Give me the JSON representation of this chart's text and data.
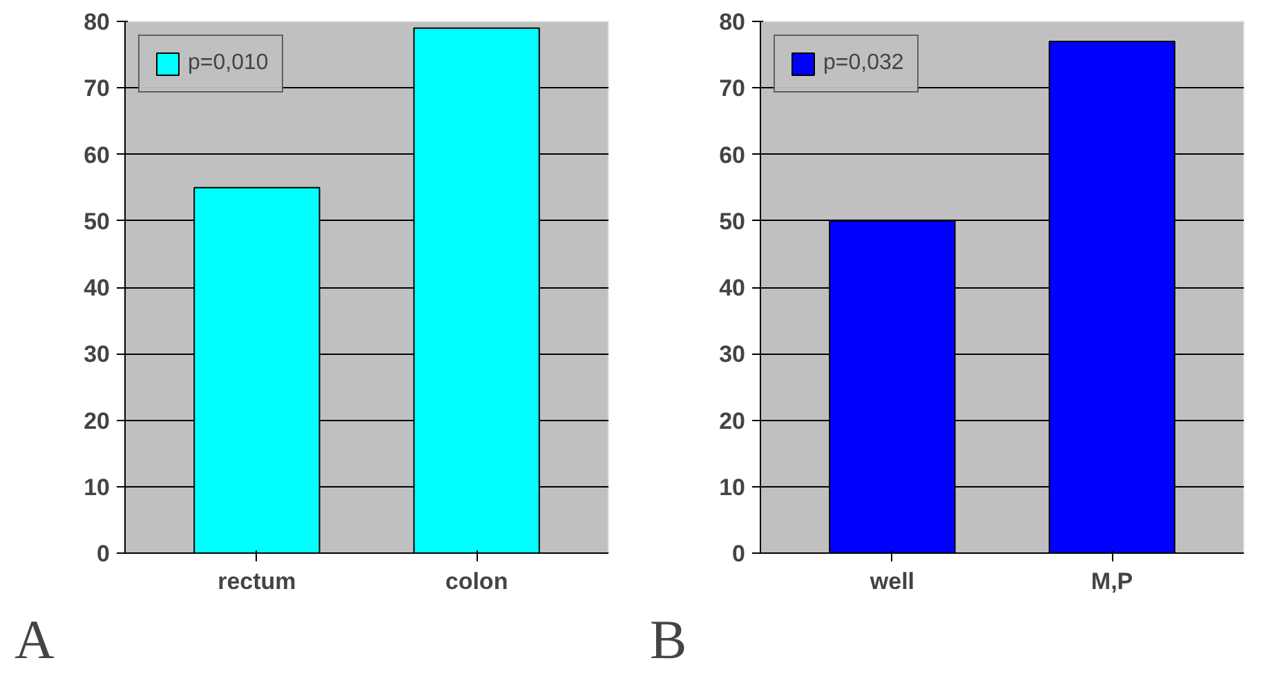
{
  "chart_data": [
    {
      "type": "bar",
      "categories": [
        "rectum",
        "colon"
      ],
      "series": [
        {
          "name": "p=0,010",
          "color": "#00ffff",
          "values": [
            55,
            79
          ]
        }
      ],
      "ylim": [
        0,
        80
      ],
      "yticks": [
        0,
        10,
        20,
        30,
        40,
        50,
        60,
        70,
        80
      ],
      "grid": "y",
      "legend": "top left",
      "annotations": [
        "A"
      ]
    },
    {
      "type": "bar",
      "categories": [
        "well",
        "M,P"
      ],
      "series": [
        {
          "name": "p=0,032",
          "color": "#0000ff",
          "values": [
            50,
            77
          ]
        }
      ],
      "ylim": [
        0,
        80
      ],
      "yticks": [
        0,
        10,
        20,
        30,
        40,
        50,
        60,
        70,
        80
      ],
      "grid": "y",
      "legend": "top left",
      "annotations": [
        "B"
      ]
    }
  ]
}
